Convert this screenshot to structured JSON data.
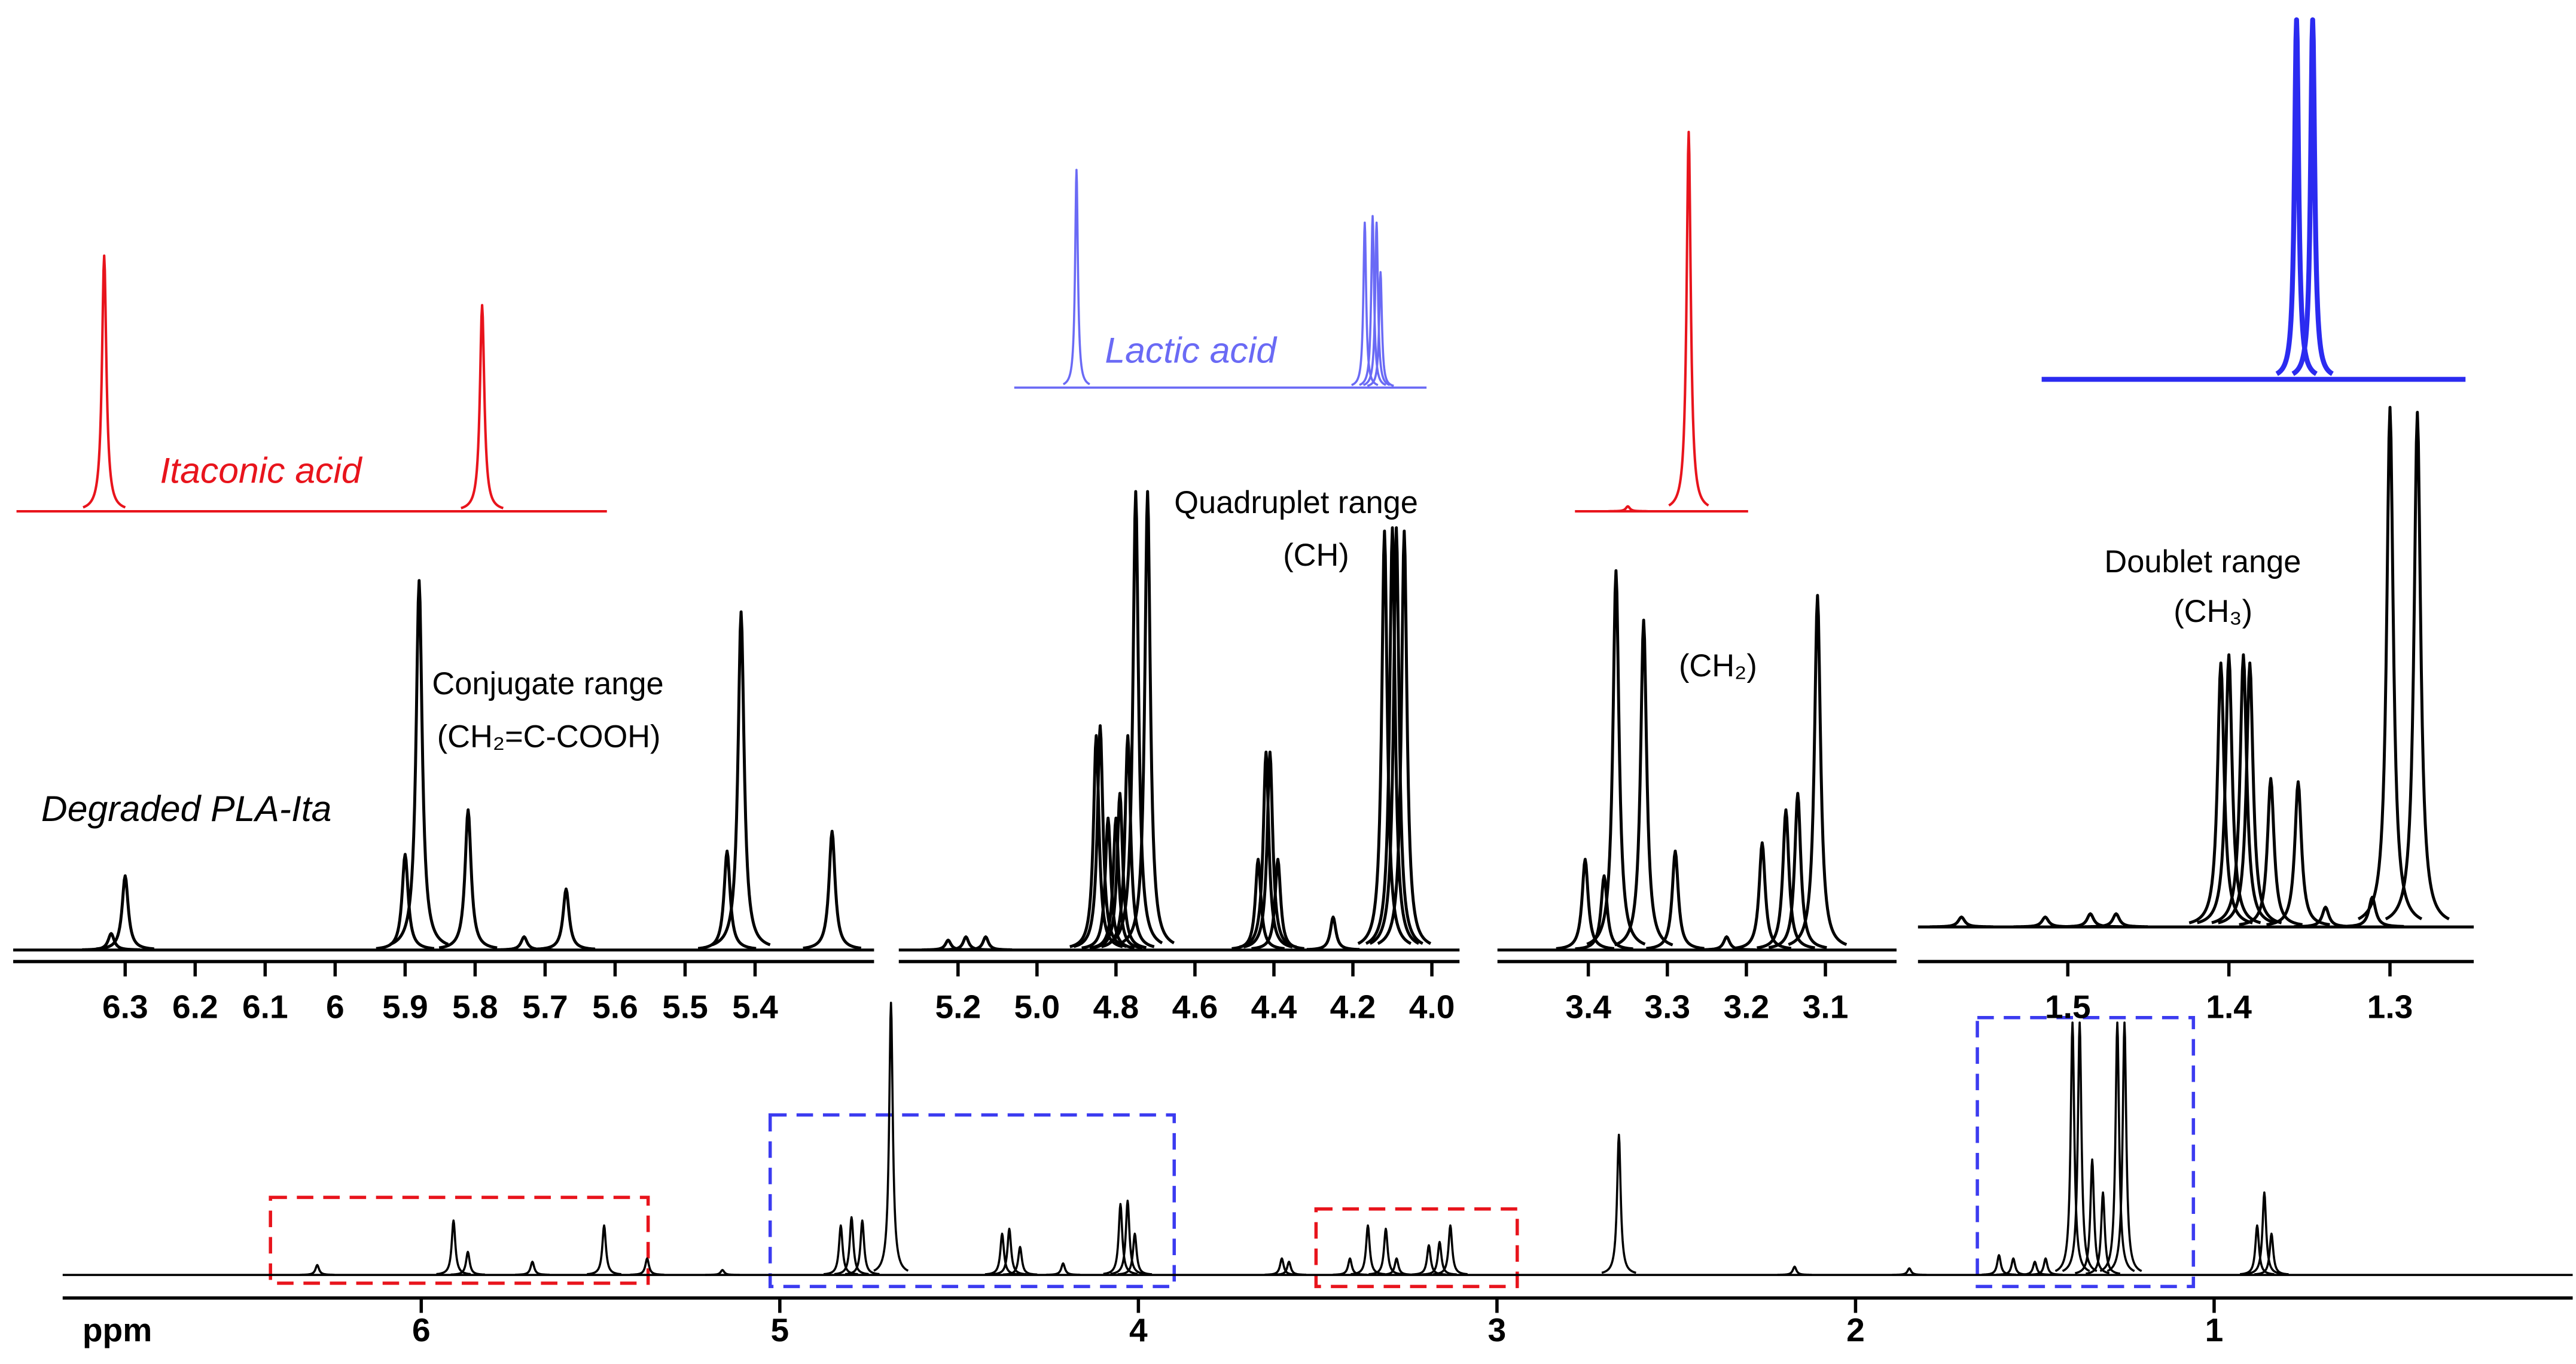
{
  "chart_data": [
    {
      "type": "spectrum",
      "x_label": "ppm",
      "xlim": [
        7.0,
        0.0
      ],
      "xticks": [
        6,
        5,
        4,
        3,
        2,
        1
      ],
      "series": [
        {
          "color": "#000000",
          "x": [
            6.29,
            5.91,
            5.87,
            5.69,
            5.49,
            5.37,
            5.16,
            4.83,
            4.8,
            4.77,
            4.69,
            4.38,
            4.36,
            4.33,
            4.21,
            4.05,
            4.03,
            4.01,
            3.6,
            3.58,
            3.41,
            3.36,
            3.31,
            3.28,
            3.19,
            3.16,
            3.13,
            2.66,
            2.17,
            1.85,
            1.6,
            1.56,
            1.5,
            1.47,
            1.395,
            1.375,
            1.34,
            1.31,
            1.27,
            1.25,
            0.88,
            0.86,
            0.84
          ],
          "values": [
            6,
            33,
            14,
            8,
            30,
            10,
            3,
            30,
            35,
            33,
            165,
            25,
            28,
            17,
            7,
            43,
            45,
            25,
            10,
            8,
            10,
            30,
            28,
            10,
            18,
            20,
            30,
            85,
            5,
            4,
            12,
            10,
            8,
            10,
            153,
            153,
            70,
            50,
            153,
            153,
            30,
            50,
            25
          ]
        }
      ]
    },
    {
      "type": "spectrum",
      "xlim": [
        6.46,
        5.23
      ],
      "xticks": [
        6.3,
        6.2,
        6.1,
        6,
        5.9,
        5.8,
        5.7,
        5.6,
        5.5,
        5.4
      ],
      "annotations": [
        "Conjugate range",
        "(CH₂=C-COOH)"
      ],
      "series": [
        {
          "name": "Degraded PLA-Ita",
          "color": "#000000",
          "x": [
            6.32,
            6.3,
            5.9,
            5.88,
            5.81,
            5.73,
            5.67,
            5.44,
            5.42,
            5.29
          ],
          "values": [
            10,
            45,
            58,
            224,
            85,
            8,
            37,
            60,
            205,
            72
          ]
        },
        {
          "name": "Itaconic acid",
          "color": "#e8141c",
          "x": [
            6.33,
            5.79
          ],
          "values": [
            155,
            125
          ]
        }
      ]
    },
    {
      "type": "spectrum",
      "xlim": [
        5.35,
        3.93
      ],
      "xticks": [
        5.2,
        {
          "value": 5.0,
          "label": "5.0"
        },
        4.8,
        4.6,
        4.4,
        4.2,
        {
          "value": 4.0,
          "label": "4.0"
        }
      ],
      "annotations": [
        "Quadruplet range",
        "(CH)"
      ],
      "series": [
        {
          "color": "#000000",
          "x": [
            5.225,
            5.18,
            5.13,
            4.85,
            4.84,
            4.82,
            4.8,
            4.79,
            4.77,
            4.75,
            4.72,
            4.44,
            4.42,
            4.41,
            4.39,
            4.25,
            4.12,
            4.1,
            4.09,
            4.07
          ],
          "values": [
            6,
            8,
            8,
            130,
            136,
            80,
            80,
            95,
            130,
            278,
            278,
            55,
            120,
            120,
            55,
            20,
            254,
            256,
            256,
            254
          ]
        },
        {
          "name": "Lactic acid",
          "color": "#6a6af5",
          "x": [
            4.9,
            4.17,
            4.15,
            4.14,
            4.13
          ],
          "values": [
            132,
            100,
            104,
            100,
            70
          ]
        }
      ]
    },
    {
      "type": "spectrum",
      "xlim": [
        3.515,
        3.01
      ],
      "xticks": [
        3.4,
        3.3,
        3.2,
        3.1
      ],
      "annotations": [
        "(CH₂)"
      ],
      "series": [
        {
          "color": "#000000",
          "x": [
            3.404,
            3.38,
            3.365,
            3.33,
            3.29,
            3.225,
            3.18,
            3.15,
            3.135,
            3.11
          ],
          "values": [
            55,
            45,
            230,
            200,
            60,
            8,
            65,
            85,
            95,
            215
          ]
        },
        {
          "color": "#e8141c",
          "x": [
            3.35,
            3.273
          ],
          "values": [
            3,
            230
          ]
        }
      ]
    },
    {
      "type": "spectrum",
      "xlim": [
        1.593,
        1.248
      ],
      "xticks": [
        1.5,
        1.4,
        1.3
      ],
      "annotations": [
        "Doublet range",
        "(CH₃)"
      ],
      "series": [
        {
          "color": "#000000",
          "x": [
            1.566,
            1.514,
            1.486,
            1.47,
            1.405,
            1.4,
            1.391,
            1.387,
            1.374,
            1.357,
            1.34,
            1.311,
            1.3,
            1.283
          ],
          "values": [
            6,
            6,
            8,
            8,
            160,
            165,
            165,
            160,
            90,
            88,
            12,
            18,
            315,
            312
          ]
        },
        {
          "color": "#2b2bf0",
          "x": [
            1.358,
            1.348
          ],
          "values": [
            218,
            218
          ]
        }
      ]
    }
  ]
}
